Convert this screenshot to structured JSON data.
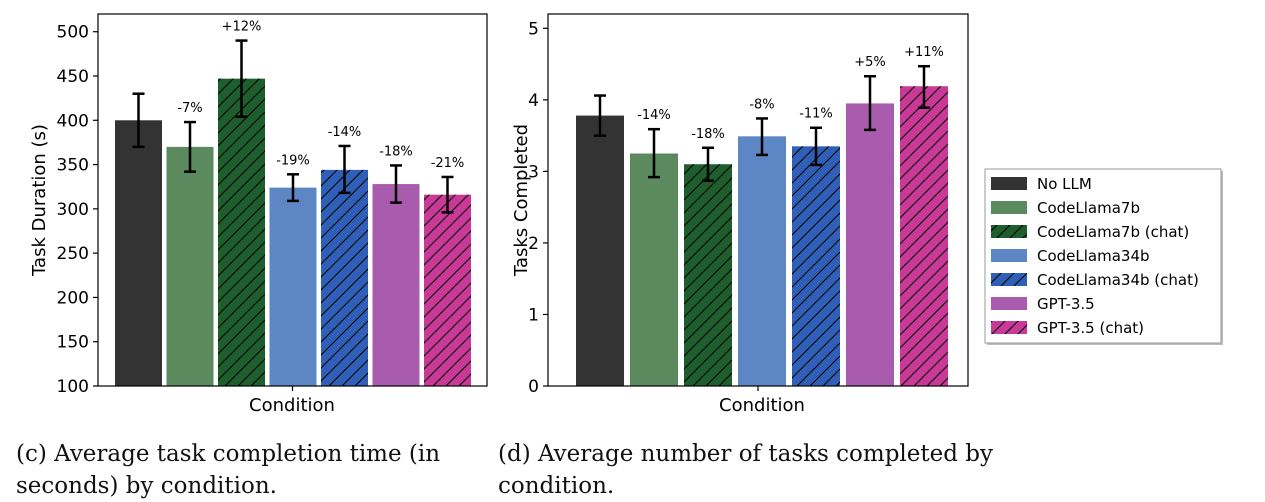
{
  "legend": [
    {
      "name": "No LLM",
      "color": "#333333",
      "hatch": false
    },
    {
      "name": "CodeLlama7b",
      "color": "#5b8a5e",
      "hatch": false
    },
    {
      "name": "CodeLlama7b (chat)",
      "color": "#1d5e2c",
      "hatch": true
    },
    {
      "name": "CodeLlama34b",
      "color": "#5c86c4",
      "hatch": false
    },
    {
      "name": "CodeLlama34b (chat)",
      "color": "#2f5fb6",
      "hatch": true
    },
    {
      "name": "GPT-3.5",
      "color": "#a95cae",
      "hatch": false
    },
    {
      "name": "GPT-3.5 (chat)",
      "color": "#c93a98",
      "hatch": true
    }
  ],
  "chart_data": [
    {
      "type": "bar",
      "xlabel": "Condition",
      "ylabel": "Task Duration (s)",
      "ylim": [
        100,
        520
      ],
      "yticks": [
        100,
        150,
        200,
        250,
        300,
        350,
        400,
        450,
        500
      ],
      "grid": false,
      "legend_position": "none",
      "bars": [
        {
          "series": "No LLM",
          "value": 400,
          "err_low": 370,
          "err_high": 430,
          "annotation": ""
        },
        {
          "series": "CodeLlama7b",
          "value": 370,
          "err_low": 342,
          "err_high": 398,
          "annotation": "-7%"
        },
        {
          "series": "CodeLlama7b (chat)",
          "value": 447,
          "err_low": 404,
          "err_high": 490,
          "annotation": "+12%"
        },
        {
          "series": "CodeLlama34b",
          "value": 324,
          "err_low": 309,
          "err_high": 339,
          "annotation": "-19%"
        },
        {
          "series": "CodeLlama34b (chat)",
          "value": 344,
          "err_low": 318,
          "err_high": 371,
          "annotation": "-14%"
        },
        {
          "series": "GPT-3.5",
          "value": 328,
          "err_low": 307,
          "err_high": 349,
          "annotation": "-18%"
        },
        {
          "series": "GPT-3.5 (chat)",
          "value": 316,
          "err_low": 296,
          "err_high": 336,
          "annotation": "-21%"
        }
      ],
      "caption": "(c) Average task completion time (in seconds) by condition."
    },
    {
      "type": "bar",
      "xlabel": "Condition",
      "ylabel": "Tasks Completed",
      "ylim": [
        0,
        5.2
      ],
      "yticks": [
        0,
        1,
        2,
        3,
        4,
        5
      ],
      "grid": false,
      "legend_position": "right",
      "bars": [
        {
          "series": "No LLM",
          "value": 3.78,
          "err_low": 3.5,
          "err_high": 4.06,
          "annotation": ""
        },
        {
          "series": "CodeLlama7b",
          "value": 3.25,
          "err_low": 2.92,
          "err_high": 3.59,
          "annotation": "-14%"
        },
        {
          "series": "CodeLlama7b (chat)",
          "value": 3.1,
          "err_low": 2.87,
          "err_high": 3.33,
          "annotation": "-18%"
        },
        {
          "series": "CodeLlama34b",
          "value": 3.49,
          "err_low": 3.23,
          "err_high": 3.74,
          "annotation": "-8%"
        },
        {
          "series": "CodeLlama34b (chat)",
          "value": 3.35,
          "err_low": 3.09,
          "err_high": 3.61,
          "annotation": "-11%"
        },
        {
          "series": "GPT-3.5",
          "value": 3.95,
          "err_low": 3.58,
          "err_high": 4.33,
          "annotation": "+5%"
        },
        {
          "series": "GPT-3.5 (chat)",
          "value": 4.19,
          "err_low": 3.89,
          "err_high": 4.47,
          "annotation": "+11%"
        }
      ],
      "caption": "(d) Average number of tasks completed by condition."
    }
  ]
}
